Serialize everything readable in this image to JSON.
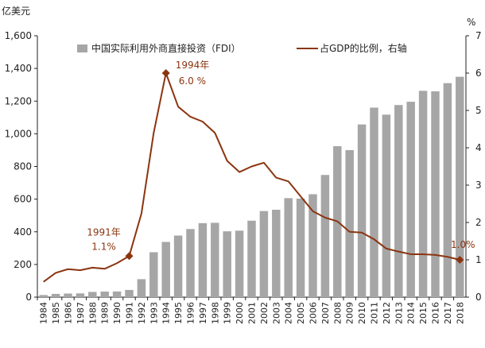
{
  "chart_data": {
    "type": "bar",
    "title": "",
    "left_axis_unit": "亿美元",
    "right_axis_unit": "%",
    "ylim": [
      0,
      1600
    ],
    "ylim_right": [
      0,
      7
    ],
    "yticks": [
      "0",
      "200",
      "400",
      "600",
      "800",
      "1,000",
      "1,200",
      "1,400",
      "1,600"
    ],
    "yticks_right": [
      "0",
      "1",
      "2",
      "3",
      "4",
      "5",
      "6",
      "7"
    ],
    "categories": [
      "1984",
      "1985",
      "1986",
      "1987",
      "1988",
      "1989",
      "1990",
      "1991",
      "1992",
      "1993",
      "1994",
      "1995",
      "1996",
      "1997",
      "1998",
      "1999",
      "2000",
      "2001",
      "2002",
      "2003",
      "2004",
      "2005",
      "2006",
      "2007",
      "2008",
      "2009",
      "2010",
      "2011",
      "2012",
      "2013",
      "2014",
      "2015",
      "2016",
      "2017",
      "2018"
    ],
    "series": [
      {
        "name": "中国实际利用外商直接投资（FDI）",
        "type": "bar",
        "axis": "left",
        "color": "#a6a6a6",
        "values": [
          13,
          20,
          22,
          23,
          32,
          34,
          35,
          44,
          110,
          275,
          338,
          377,
          417,
          453,
          455,
          403,
          407,
          468,
          527,
          535,
          606,
          603,
          630,
          748,
          924,
          900,
          1057,
          1160,
          1117,
          1176,
          1196,
          1263,
          1260,
          1310,
          1349
        ]
      },
      {
        "name": "占GDP的比例，右轴",
        "type": "line",
        "axis": "right",
        "color": "#8b3510",
        "values": [
          0.41,
          0.65,
          0.75,
          0.72,
          0.79,
          0.76,
          0.91,
          1.1,
          2.24,
          4.4,
          6.0,
          5.1,
          4.83,
          4.7,
          4.4,
          3.65,
          3.35,
          3.5,
          3.6,
          3.2,
          3.1,
          2.7,
          2.3,
          2.13,
          2.03,
          1.75,
          1.73,
          1.55,
          1.3,
          1.22,
          1.15,
          1.15,
          1.13,
          1.08,
          1.0
        ]
      }
    ],
    "annotations": [
      {
        "year_label": "1994年",
        "value_label": "6.0 %",
        "index": 10
      },
      {
        "year_label": "1991年",
        "value_label": "1.1%",
        "index": 7
      },
      {
        "value_label": "1.0%",
        "index": 34
      }
    ],
    "legend_placement": "top-center",
    "grid": false
  }
}
